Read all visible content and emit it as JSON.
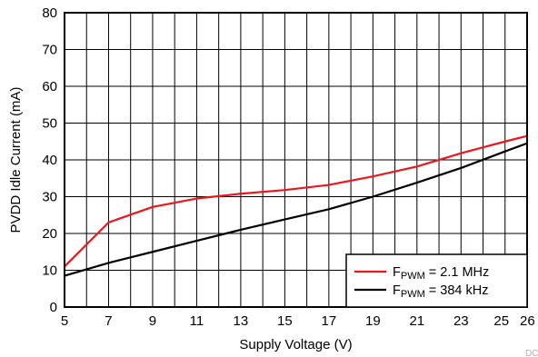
{
  "chart_data": {
    "type": "line",
    "title": "",
    "xlabel": "Supply Voltage (V)",
    "ylabel": "PVDD Idle Current (mA)",
    "xlim": [
      5,
      26
    ],
    "ylim": [
      0,
      80
    ],
    "xticks": [
      5,
      7,
      9,
      11,
      13,
      15,
      17,
      19,
      21,
      23,
      25,
      26
    ],
    "yticks": [
      0,
      10,
      20,
      30,
      40,
      50,
      60,
      70,
      80
    ],
    "grid": true,
    "legend_position": "bottom-right",
    "series": [
      {
        "name_main": "F",
        "name_sub": "PWM",
        "name_rest": " = 2.1 MHz",
        "color": "#e8191e",
        "x": [
          5,
          7,
          9,
          11,
          13,
          15,
          17,
          19,
          21,
          23,
          25,
          26
        ],
        "y": [
          11,
          23,
          27.2,
          29.5,
          30.8,
          31.8,
          33.2,
          35.5,
          38.2,
          41.8,
          45,
          46.5
        ]
      },
      {
        "name_main": "F",
        "name_sub": "PWM",
        "name_rest": " = 384 kHz",
        "color": "#000000",
        "x": [
          5,
          7,
          9,
          11,
          13,
          15,
          17,
          19,
          21,
          23,
          25,
          26
        ],
        "y": [
          8.5,
          12,
          15,
          18,
          21,
          23.8,
          26.6,
          30,
          33.8,
          37.8,
          42.3,
          44.5
        ]
      }
    ]
  },
  "watermark": "DC"
}
